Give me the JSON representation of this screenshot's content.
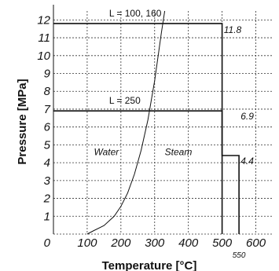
{
  "chart_data": {
    "type": "line",
    "xlabel": "Temperature [°C]",
    "ylabel": "Pressure [MPa]",
    "xlim": [
      0,
      650
    ],
    "ylim": [
      0,
      12.5
    ],
    "x_ticks": [
      "0",
      "100",
      "200",
      "300",
      "400",
      "500",
      "600"
    ],
    "x_tick_values": [
      0,
      100,
      200,
      300,
      400,
      500,
      600
    ],
    "extra_x_tick": {
      "value": 550,
      "label": "550"
    },
    "y_ticks": [
      "1",
      "2",
      "3",
      "4",
      "5",
      "6",
      "7",
      "8",
      "9",
      "10",
      "11",
      "12"
    ],
    "y_tick_values": [
      1,
      2,
      3,
      4,
      5,
      6,
      7,
      8,
      9,
      10,
      11,
      12
    ],
    "grid": true,
    "series": [
      {
        "name": "L = 100, 160",
        "points": [
          [
            0,
            11.8
          ],
          [
            500,
            11.8
          ],
          [
            500,
            0
          ]
        ]
      },
      {
        "name": "L = 250",
        "points": [
          [
            0,
            6.9
          ],
          [
            500,
            6.9
          ],
          [
            500,
            4.4
          ],
          [
            550,
            4.4
          ],
          [
            550,
            0
          ]
        ]
      },
      {
        "name": "",
        "points": [
          [
            100,
            0
          ],
          [
            120,
            0.2
          ],
          [
            150,
            0.48
          ],
          [
            180,
            1.0
          ],
          [
            200,
            1.55
          ],
          [
            220,
            2.3
          ],
          [
            240,
            3.35
          ],
          [
            260,
            4.7
          ],
          [
            280,
            6.4
          ],
          [
            300,
            8.6
          ],
          [
            320,
            11.3
          ],
          [
            330,
            12.5
          ]
        ]
      }
    ],
    "line_labels": [
      {
        "text": "L = 100, 160",
        "x": 165,
        "y": 12.2
      },
      {
        "text": "L = 250",
        "x": 165,
        "y": 7.3
      }
    ],
    "annotations": [
      {
        "text": "11.8",
        "x": 505,
        "y": 11.45
      },
      {
        "text": "6.9",
        "x": 555,
        "y": 6.6
      },
      {
        "text": "4.4",
        "x": 555,
        "y": 4.1
      },
      {
        "text": "Water",
        "x": 120,
        "y": 4.6
      },
      {
        "text": "Steam",
        "x": 330,
        "y": 4.6
      }
    ]
  }
}
